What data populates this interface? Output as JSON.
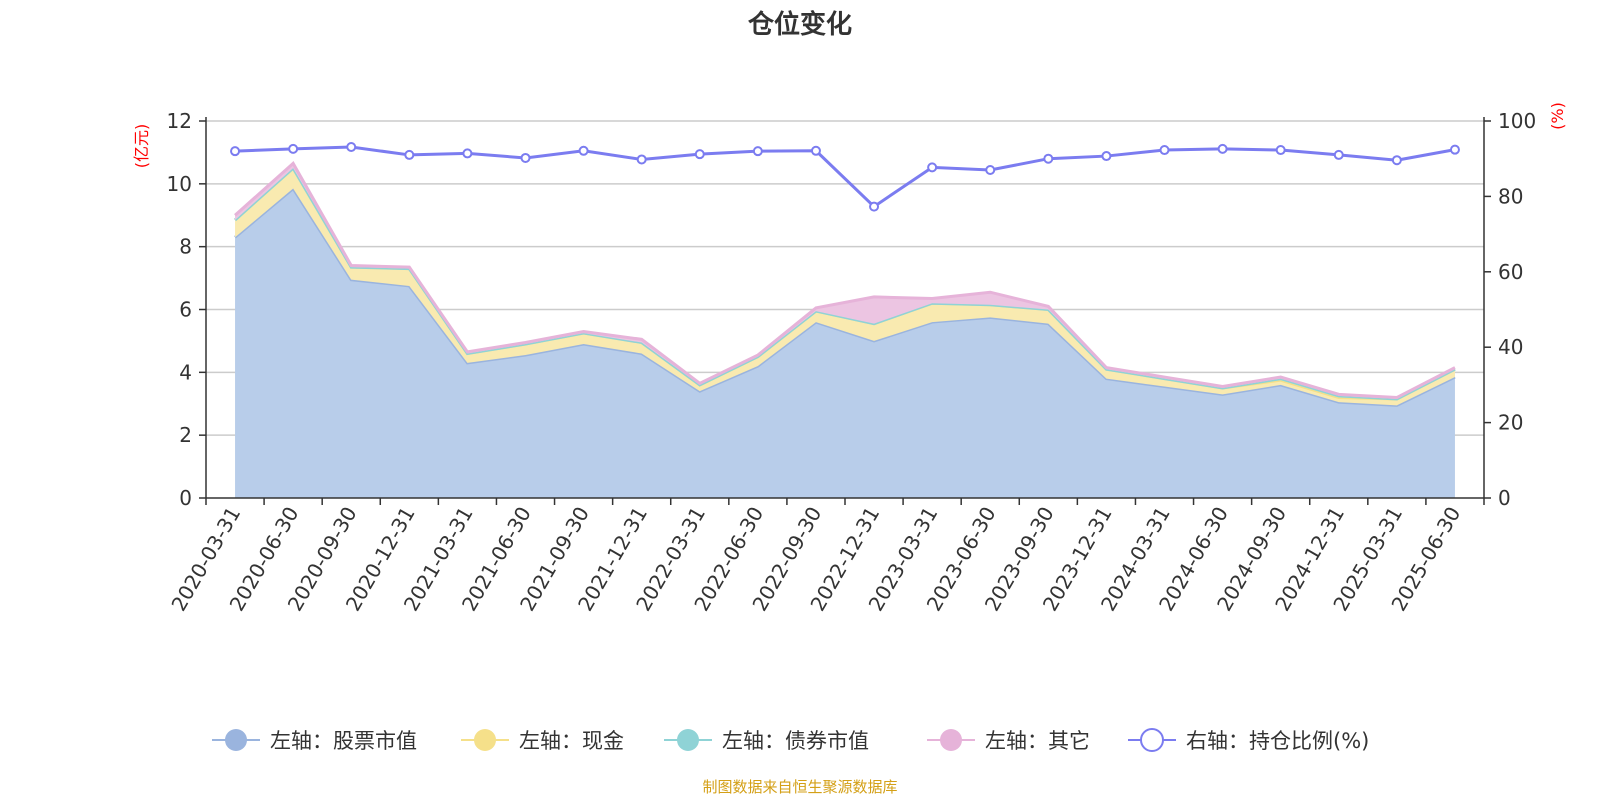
{
  "chart_data": {
    "type": "area",
    "title": "仓位变化",
    "left_unit": "(亿元)",
    "right_unit": "(%)",
    "source": "制图数据来自恒生聚源数据库",
    "categories": [
      "2020-03-31",
      "2020-06-30",
      "2020-09-30",
      "2020-12-31",
      "2021-03-31",
      "2021-06-30",
      "2021-09-30",
      "2021-12-31",
      "2022-03-31",
      "2022-06-30",
      "2022-09-30",
      "2022-12-31",
      "2023-03-31",
      "2023-06-30",
      "2023-09-30",
      "2023-12-31",
      "2024-03-31",
      "2024-06-30",
      "2024-09-30",
      "2024-12-31",
      "2025-03-31",
      "2025-06-30"
    ],
    "ylim_left": [
      0,
      12
    ],
    "yticks_left": [
      "0",
      "2",
      "4",
      "6",
      "8",
      "10",
      "12"
    ],
    "ylim_right": [
      0,
      100
    ],
    "yticks_right": [
      "0",
      "20",
      "40",
      "60",
      "80",
      "100"
    ],
    "grid": true,
    "legend_position": "bottom",
    "series": [
      {
        "name": "左轴：股票市值",
        "axis": "left",
        "stacked": true,
        "color": "#9ab4de",
        "fill": "#b8cdea",
        "values": [
          8.3,
          9.85,
          6.95,
          6.75,
          4.3,
          4.55,
          4.9,
          4.6,
          3.4,
          4.2,
          5.6,
          5.0,
          5.6,
          5.75,
          5.55,
          3.8,
          3.55,
          3.3,
          3.6,
          3.05,
          2.95,
          3.85
        ]
      },
      {
        "name": "左轴：现金",
        "axis": "left",
        "stacked": true,
        "color": "#f5e08a",
        "fill": "#f9eab0",
        "values": [
          0.55,
          0.65,
          0.4,
          0.55,
          0.3,
          0.35,
          0.35,
          0.35,
          0.2,
          0.3,
          0.35,
          0.55,
          0.6,
          0.4,
          0.45,
          0.3,
          0.25,
          0.2,
          0.15,
          0.15,
          0.2,
          0.25
        ]
      },
      {
        "name": "左轴：债券市值",
        "axis": "left",
        "stacked": true,
        "color": "#8fd3d6",
        "fill": "#b5e3e4",
        "values": [
          0,
          0,
          0,
          0,
          0,
          0,
          0,
          0,
          0,
          0,
          0,
          0,
          0,
          0,
          0,
          0,
          0,
          0,
          0.05,
          0.05,
          0,
          0
        ]
      },
      {
        "name": "左轴：其它",
        "axis": "left",
        "stacked": true,
        "color": "#e6b3d9",
        "fill": "#ecc5e2",
        "values": [
          0.15,
          0.15,
          0.05,
          0.05,
          0.05,
          0.05,
          0.05,
          0.1,
          0.05,
          0.05,
          0.1,
          0.85,
          0.15,
          0.4,
          0.1,
          0.05,
          0.05,
          0.05,
          0.05,
          0.05,
          0.05,
          0.05
        ]
      },
      {
        "name": "右轴：持仓比例(%)",
        "axis": "right",
        "stacked": false,
        "color": "#7b7cf0",
        "values": [
          92.0,
          92.6,
          93.1,
          91.0,
          91.4,
          90.2,
          92.1,
          89.8,
          91.2,
          92.0,
          92.1,
          77.3,
          87.7,
          87.0,
          90.0,
          90.7,
          92.3,
          92.6,
          92.3,
          91.0,
          89.6,
          92.4
        ]
      }
    ]
  }
}
